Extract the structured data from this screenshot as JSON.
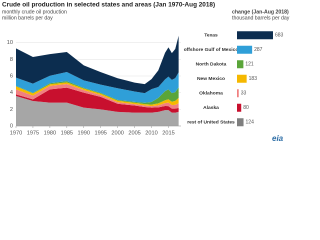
{
  "chart_data": [
    {
      "type": "stacked-area",
      "title": "Crude oil production in selected states and areas (Jan 1970-Aug 2018)",
      "subtitle": "monthly crude oil production",
      "y_label": "million barrels per day",
      "x": [
        1970,
        1975,
        1980,
        1985,
        1990,
        1995,
        2000,
        2005,
        2008,
        2010,
        2012,
        2014,
        2015,
        2016,
        2017,
        2018
      ],
      "series": [
        {
          "name": "rest of United States",
          "color": "#a6a6a6",
          "values": [
            3.6,
            3.0,
            2.8,
            2.8,
            2.2,
            2.0,
            1.7,
            1.6,
            1.6,
            1.6,
            1.7,
            1.9,
            1.9,
            1.6,
            1.6,
            1.7
          ]
        },
        {
          "name": "Alaska",
          "color": "#c8102e",
          "values": [
            0.2,
            0.2,
            1.6,
            1.8,
            1.8,
            1.5,
            0.97,
            0.86,
            0.68,
            0.6,
            0.53,
            0.5,
            0.48,
            0.49,
            0.49,
            0.48
          ]
        },
        {
          "name": "Oklahoma",
          "color": "#f08080",
          "values": [
            0.6,
            0.45,
            0.42,
            0.44,
            0.3,
            0.22,
            0.19,
            0.17,
            0.18,
            0.19,
            0.25,
            0.35,
            0.43,
            0.42,
            0.45,
            0.55
          ]
        },
        {
          "name": "New Mexico",
          "color": "#f5b800",
          "values": [
            0.35,
            0.27,
            0.19,
            0.2,
            0.18,
            0.17,
            0.18,
            0.16,
            0.16,
            0.18,
            0.24,
            0.34,
            0.4,
            0.4,
            0.47,
            0.65
          ]
        },
        {
          "name": "North Dakota",
          "color": "#5aa53a",
          "values": [
            0.06,
            0.06,
            0.12,
            0.14,
            0.1,
            0.08,
            0.09,
            0.1,
            0.17,
            0.31,
            0.66,
            1.1,
            1.18,
            1.03,
            1.05,
            1.25
          ]
        },
        {
          "name": "offshore Gulf of Mexico",
          "color": "#2f9fd8",
          "values": [
            1.0,
            1.1,
            0.9,
            1.1,
            0.9,
            1.0,
            1.4,
            1.25,
            1.15,
            1.55,
            1.3,
            1.4,
            1.54,
            1.6,
            1.68,
            1.8
          ]
        },
        {
          "name": "Texas",
          "color": "#0c2d4f",
          "values": [
            3.5,
            3.2,
            2.6,
            2.4,
            1.8,
            1.5,
            1.2,
            1.07,
            1.09,
            1.2,
            2.0,
            3.2,
            3.5,
            3.2,
            3.5,
            4.4
          ]
        }
      ],
      "xlim": [
        1970,
        2018.7
      ],
      "xticks": [
        1970,
        1975,
        1980,
        1985,
        1990,
        1995,
        2000,
        2005,
        2010,
        2015
      ],
      "ylim": [
        0,
        12
      ],
      "yticks": [
        0,
        2,
        4,
        6,
        8,
        10
      ],
      "grid": true
    },
    {
      "type": "hbar",
      "title": "change (Jan-Aug 2018)",
      "subtitle": "thousand barrels per day",
      "categories": [
        "Texas",
        "offshore Gulf of Mexico",
        "North Dakota",
        "New Mexico",
        "Oklahoma",
        "Alaska",
        "rest of United States"
      ],
      "colors": [
        "#0c2d4f",
        "#2f9fd8",
        "#5aa53a",
        "#f5b800",
        "#f08080",
        "#c8102e",
        "#7f7f7f"
      ],
      "values": [
        683,
        287,
        121,
        183,
        33,
        80,
        124
      ],
      "xlim": [
        0,
        683
      ]
    }
  ],
  "logo": "eia"
}
